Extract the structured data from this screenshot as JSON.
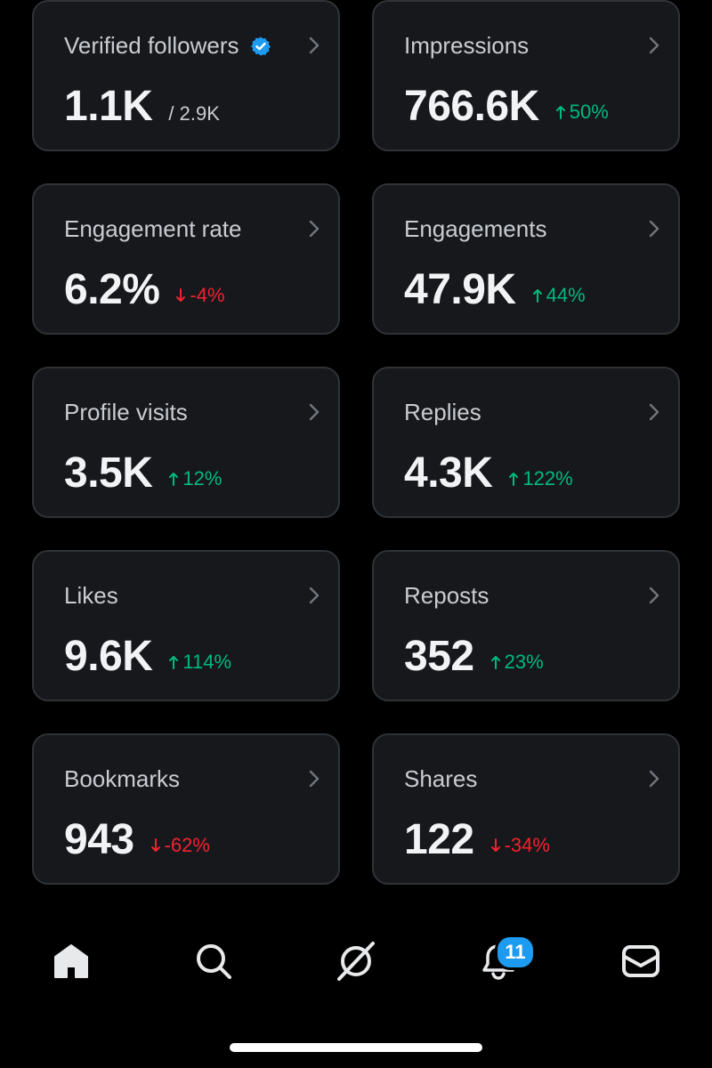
{
  "cards": [
    {
      "label": "Verified followers",
      "value": "1.1K",
      "sub": "/ 2.9K",
      "verified": true
    },
    {
      "label": "Impressions",
      "value": "766.6K",
      "delta": "50%",
      "direction": "up"
    },
    {
      "label": "Engagement rate",
      "value": "6.2%",
      "delta": "-4%",
      "direction": "down"
    },
    {
      "label": "Engagements",
      "value": "47.9K",
      "delta": "44%",
      "direction": "up"
    },
    {
      "label": "Profile visits",
      "value": "3.5K",
      "delta": "12%",
      "direction": "up"
    },
    {
      "label": "Replies",
      "value": "4.3K",
      "delta": "122%",
      "direction": "up"
    },
    {
      "label": "Likes",
      "value": "9.6K",
      "delta": "114%",
      "direction": "up"
    },
    {
      "label": "Reposts",
      "value": "352",
      "delta": "23%",
      "direction": "up"
    },
    {
      "label": "Bookmarks",
      "value": "943",
      "delta": "-62%",
      "direction": "down"
    },
    {
      "label": "Shares",
      "value": "122",
      "delta": "-34%",
      "direction": "down"
    }
  ],
  "tabbar": {
    "tabs": [
      {
        "name": "home",
        "icon": "home-icon"
      },
      {
        "name": "search",
        "icon": "search-icon"
      },
      {
        "name": "grok",
        "icon": "grok-icon"
      },
      {
        "name": "notifications",
        "icon": "bell-icon"
      },
      {
        "name": "messages",
        "icon": "mail-icon"
      }
    ],
    "notifications_badge": "11"
  },
  "colors": {
    "background": "#000000",
    "card": "#16181c",
    "up": "#00ba7c",
    "down": "#f4212e",
    "accent": "#1d9bf0"
  }
}
